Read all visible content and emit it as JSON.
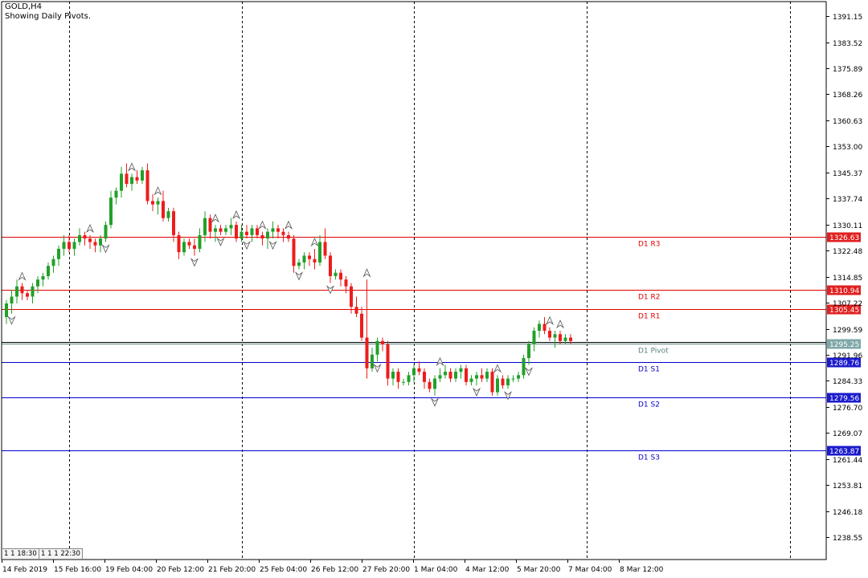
{
  "header": {
    "symbol": "GOLD,H4",
    "subtitle": "Showing Daily Pivots."
  },
  "period_separators": {
    "left": [
      "1",
      "1",
      "18:30"
    ],
    "right": [
      "1",
      "1",
      "1",
      "22:30"
    ]
  },
  "colors": {
    "bull": "#22a02a",
    "bear": "#ee1c1c",
    "resistance_line": "#e00000",
    "support_line": "#0000cc",
    "pivot_line": "#5a7f7f",
    "separator": "#000000"
  },
  "chart_data": {
    "type": "candlestick",
    "title": "GOLD,H4",
    "subtitle": "Showing Daily Pivots.",
    "y_ticks": [
      "1391.15",
      "1383.52",
      "1375.89",
      "1368.26",
      "1360.63",
      "1353.00",
      "1345.37",
      "1337.74",
      "1330.11",
      "1322.48",
      "1314.85",
      "1307.22",
      "1299.59",
      "1291.96",
      "1284.33",
      "1276.70",
      "1269.07",
      "1261.44",
      "1253.81",
      "1246.18",
      "1238.55"
    ],
    "y_tick_values": [
      1391.15,
      1383.52,
      1375.89,
      1368.26,
      1360.63,
      1353.0,
      1345.37,
      1337.74,
      1330.11,
      1322.48,
      1314.85,
      1307.22,
      1299.59,
      1291.96,
      1284.33,
      1276.7,
      1269.07,
      1261.44,
      1253.81,
      1246.18,
      1238.55
    ],
    "ylim": [
      1232.0,
      1395.4
    ],
    "x_labels": [
      "14 Feb 2019",
      "15 Feb 16:00",
      "19 Feb 04:00",
      "20 Feb 12:00",
      "21 Feb 20:00",
      "25 Feb 04:00",
      "26 Feb 12:00",
      "27 Feb 20:00",
      "1 Mar 04:00",
      "4 Mar 12:00",
      "5 Mar 20:00",
      "7 Mar 04:00",
      "8 Mar 12:00"
    ],
    "pivot_levels": [
      {
        "name": "D1 R3",
        "value": 1326.63,
        "label": "1326.63",
        "kind": "resistance"
      },
      {
        "name": "D1 R2",
        "value": 1310.94,
        "label": "1310.94",
        "kind": "resistance"
      },
      {
        "name": "D1 R1",
        "value": 1305.45,
        "label": "1305.45",
        "kind": "resistance"
      },
      {
        "name": "D1 Pivot",
        "value": 1295.25,
        "label": "1295.25",
        "kind": "pivot"
      },
      {
        "name": "D1 S1",
        "value": 1289.76,
        "label": "1289.76",
        "kind": "support"
      },
      {
        "name": "D1 S2",
        "value": 1279.56,
        "label": "1279.56",
        "kind": "support"
      },
      {
        "name": "D1 S3",
        "value": 1263.87,
        "label": "1263.87",
        "kind": "support"
      }
    ],
    "candles": [
      [
        1303,
        1308,
        1301,
        1307
      ],
      [
        1307,
        1311,
        1304,
        1309
      ],
      [
        1309,
        1314,
        1307,
        1312
      ],
      [
        1312,
        1313,
        1308,
        1310
      ],
      [
        1310,
        1311,
        1308,
        1309
      ],
      [
        1309,
        1313,
        1307,
        1312
      ],
      [
        1312,
        1315,
        1310,
        1314
      ],
      [
        1314,
        1316,
        1312,
        1315
      ],
      [
        1315,
        1319,
        1314,
        1318
      ],
      [
        1318,
        1321,
        1316,
        1320
      ],
      [
        1320,
        1324,
        1318,
        1323
      ],
      [
        1323,
        1327,
        1321,
        1325
      ],
      [
        1325,
        1327,
        1322,
        1323
      ],
      [
        1323,
        1326,
        1321,
        1325
      ],
      [
        1325,
        1329,
        1324,
        1327
      ],
      [
        1327,
        1328,
        1324,
        1326
      ],
      [
        1326,
        1327,
        1323,
        1325
      ],
      [
        1325,
        1326,
        1322,
        1324
      ],
      [
        1324,
        1327,
        1322,
        1326
      ],
      [
        1326,
        1331,
        1325,
        1330
      ],
      [
        1330,
        1340,
        1329,
        1338
      ],
      [
        1338,
        1341,
        1336,
        1340
      ],
      [
        1340,
        1347,
        1338,
        1345
      ],
      [
        1345,
        1348,
        1341,
        1342
      ],
      [
        1342,
        1345,
        1340,
        1344
      ],
      [
        1344,
        1346,
        1342,
        1343
      ],
      [
        1343,
        1347,
        1342,
        1346
      ],
      [
        1346,
        1348,
        1336,
        1337
      ],
      [
        1337,
        1339,
        1334,
        1336
      ],
      [
        1336,
        1338,
        1333,
        1337
      ],
      [
        1337,
        1340,
        1331,
        1332
      ],
      [
        1332,
        1335,
        1331,
        1334
      ],
      [
        1334,
        1335,
        1325,
        1327
      ],
      [
        1327,
        1328,
        1320,
        1322
      ],
      [
        1322,
        1326,
        1321,
        1325
      ],
      [
        1325,
        1326,
        1323,
        1324
      ],
      [
        1324,
        1326,
        1321,
        1323
      ],
      [
        1323,
        1329,
        1322,
        1327
      ],
      [
        1327,
        1334,
        1325,
        1332
      ],
      [
        1332,
        1333,
        1326,
        1328
      ],
      [
        1328,
        1330,
        1325,
        1329
      ],
      [
        1329,
        1330,
        1327,
        1328
      ],
      [
        1328,
        1330,
        1327,
        1329
      ],
      [
        1329,
        1332,
        1327,
        1330
      ],
      [
        1330,
        1331,
        1325,
        1326
      ],
      [
        1326,
        1330,
        1325,
        1328
      ],
      [
        1328,
        1330,
        1326,
        1327
      ],
      [
        1327,
        1330,
        1325,
        1329
      ],
      [
        1329,
        1330,
        1326,
        1327
      ],
      [
        1327,
        1328,
        1324,
        1326
      ],
      [
        1326,
        1329,
        1323,
        1328
      ],
      [
        1328,
        1331,
        1326,
        1329
      ],
      [
        1329,
        1330,
        1326,
        1328
      ],
      [
        1328,
        1329,
        1325,
        1327
      ],
      [
        1327,
        1328,
        1325,
        1326
      ],
      [
        1326,
        1327,
        1316,
        1318
      ],
      [
        1318,
        1320,
        1317,
        1319
      ],
      [
        1319,
        1322,
        1317,
        1321
      ],
      [
        1321,
        1322,
        1318,
        1320
      ],
      [
        1320,
        1323,
        1317,
        1319
      ],
      [
        1319,
        1327,
        1318,
        1325
      ],
      [
        1325,
        1329,
        1320,
        1321
      ],
      [
        1321,
        1322,
        1313,
        1315
      ],
      [
        1315,
        1317,
        1314,
        1316
      ],
      [
        1316,
        1317,
        1312,
        1314
      ],
      [
        1314,
        1315,
        1310,
        1312
      ],
      [
        1312,
        1313,
        1304,
        1306
      ],
      [
        1306,
        1309,
        1303,
        1304
      ],
      [
        1304,
        1306,
        1296,
        1297
      ],
      [
        1297,
        1314,
        1285,
        1288
      ],
      [
        1288,
        1294,
        1287,
        1292
      ],
      [
        1292,
        1297,
        1290,
        1296
      ],
      [
        1296,
        1297,
        1293,
        1295
      ],
      [
        1295,
        1296,
        1283,
        1285
      ],
      [
        1285,
        1288,
        1283,
        1287
      ],
      [
        1287,
        1288,
        1282,
        1284
      ],
      [
        1284,
        1285,
        1283,
        1284
      ],
      [
        1284,
        1287,
        1283,
        1286
      ],
      [
        1286,
        1289,
        1284,
        1288
      ],
      [
        1288,
        1290,
        1286,
        1287
      ],
      [
        1287,
        1288,
        1282,
        1284
      ],
      [
        1284,
        1285,
        1281,
        1282
      ],
      [
        1282,
        1286,
        1280,
        1285
      ],
      [
        1285,
        1288,
        1284,
        1286
      ],
      [
        1286,
        1289,
        1285,
        1287
      ],
      [
        1287,
        1288,
        1284,
        1285
      ],
      [
        1285,
        1288,
        1284,
        1287
      ],
      [
        1287,
        1289,
        1285,
        1288
      ],
      [
        1288,
        1289,
        1283,
        1284
      ],
      [
        1284,
        1286,
        1283,
        1285
      ],
      [
        1285,
        1287,
        1283,
        1286
      ],
      [
        1286,
        1288,
        1284,
        1285
      ],
      [
        1285,
        1288,
        1284,
        1287
      ],
      [
        1287,
        1288,
        1280,
        1281
      ],
      [
        1281,
        1286,
        1280,
        1285
      ],
      [
        1285,
        1286,
        1282,
        1283
      ],
      [
        1283,
        1286,
        1282,
        1285
      ],
      [
        1285,
        1286,
        1284,
        1285
      ],
      [
        1285,
        1287,
        1284,
        1286
      ],
      [
        1286,
        1292,
        1285,
        1291
      ],
      [
        1291,
        1296,
        1289,
        1295
      ],
      [
        1295,
        1300,
        1293,
        1299
      ],
      [
        1299,
        1302,
        1297,
        1301
      ],
      [
        1301,
        1303,
        1298,
        1299
      ],
      [
        1299,
        1300,
        1296,
        1297
      ],
      [
        1297,
        1299,
        1294,
        1298
      ],
      [
        1298,
        1299,
        1295,
        1296
      ],
      [
        1296,
        1298,
        1295,
        1297
      ],
      [
        1297,
        1298,
        1295,
        1296
      ]
    ],
    "fractal_up_candles": [
      3,
      16,
      24,
      29,
      40,
      44,
      49,
      54,
      59,
      69,
      83,
      94,
      104,
      106
    ],
    "fractal_down_candles": [
      1,
      19,
      36,
      41,
      46,
      51,
      56,
      62,
      71,
      82,
      90,
      96,
      100
    ],
    "vertical_separator_candles": [
      12,
      45,
      78,
      111,
      150
    ]
  }
}
